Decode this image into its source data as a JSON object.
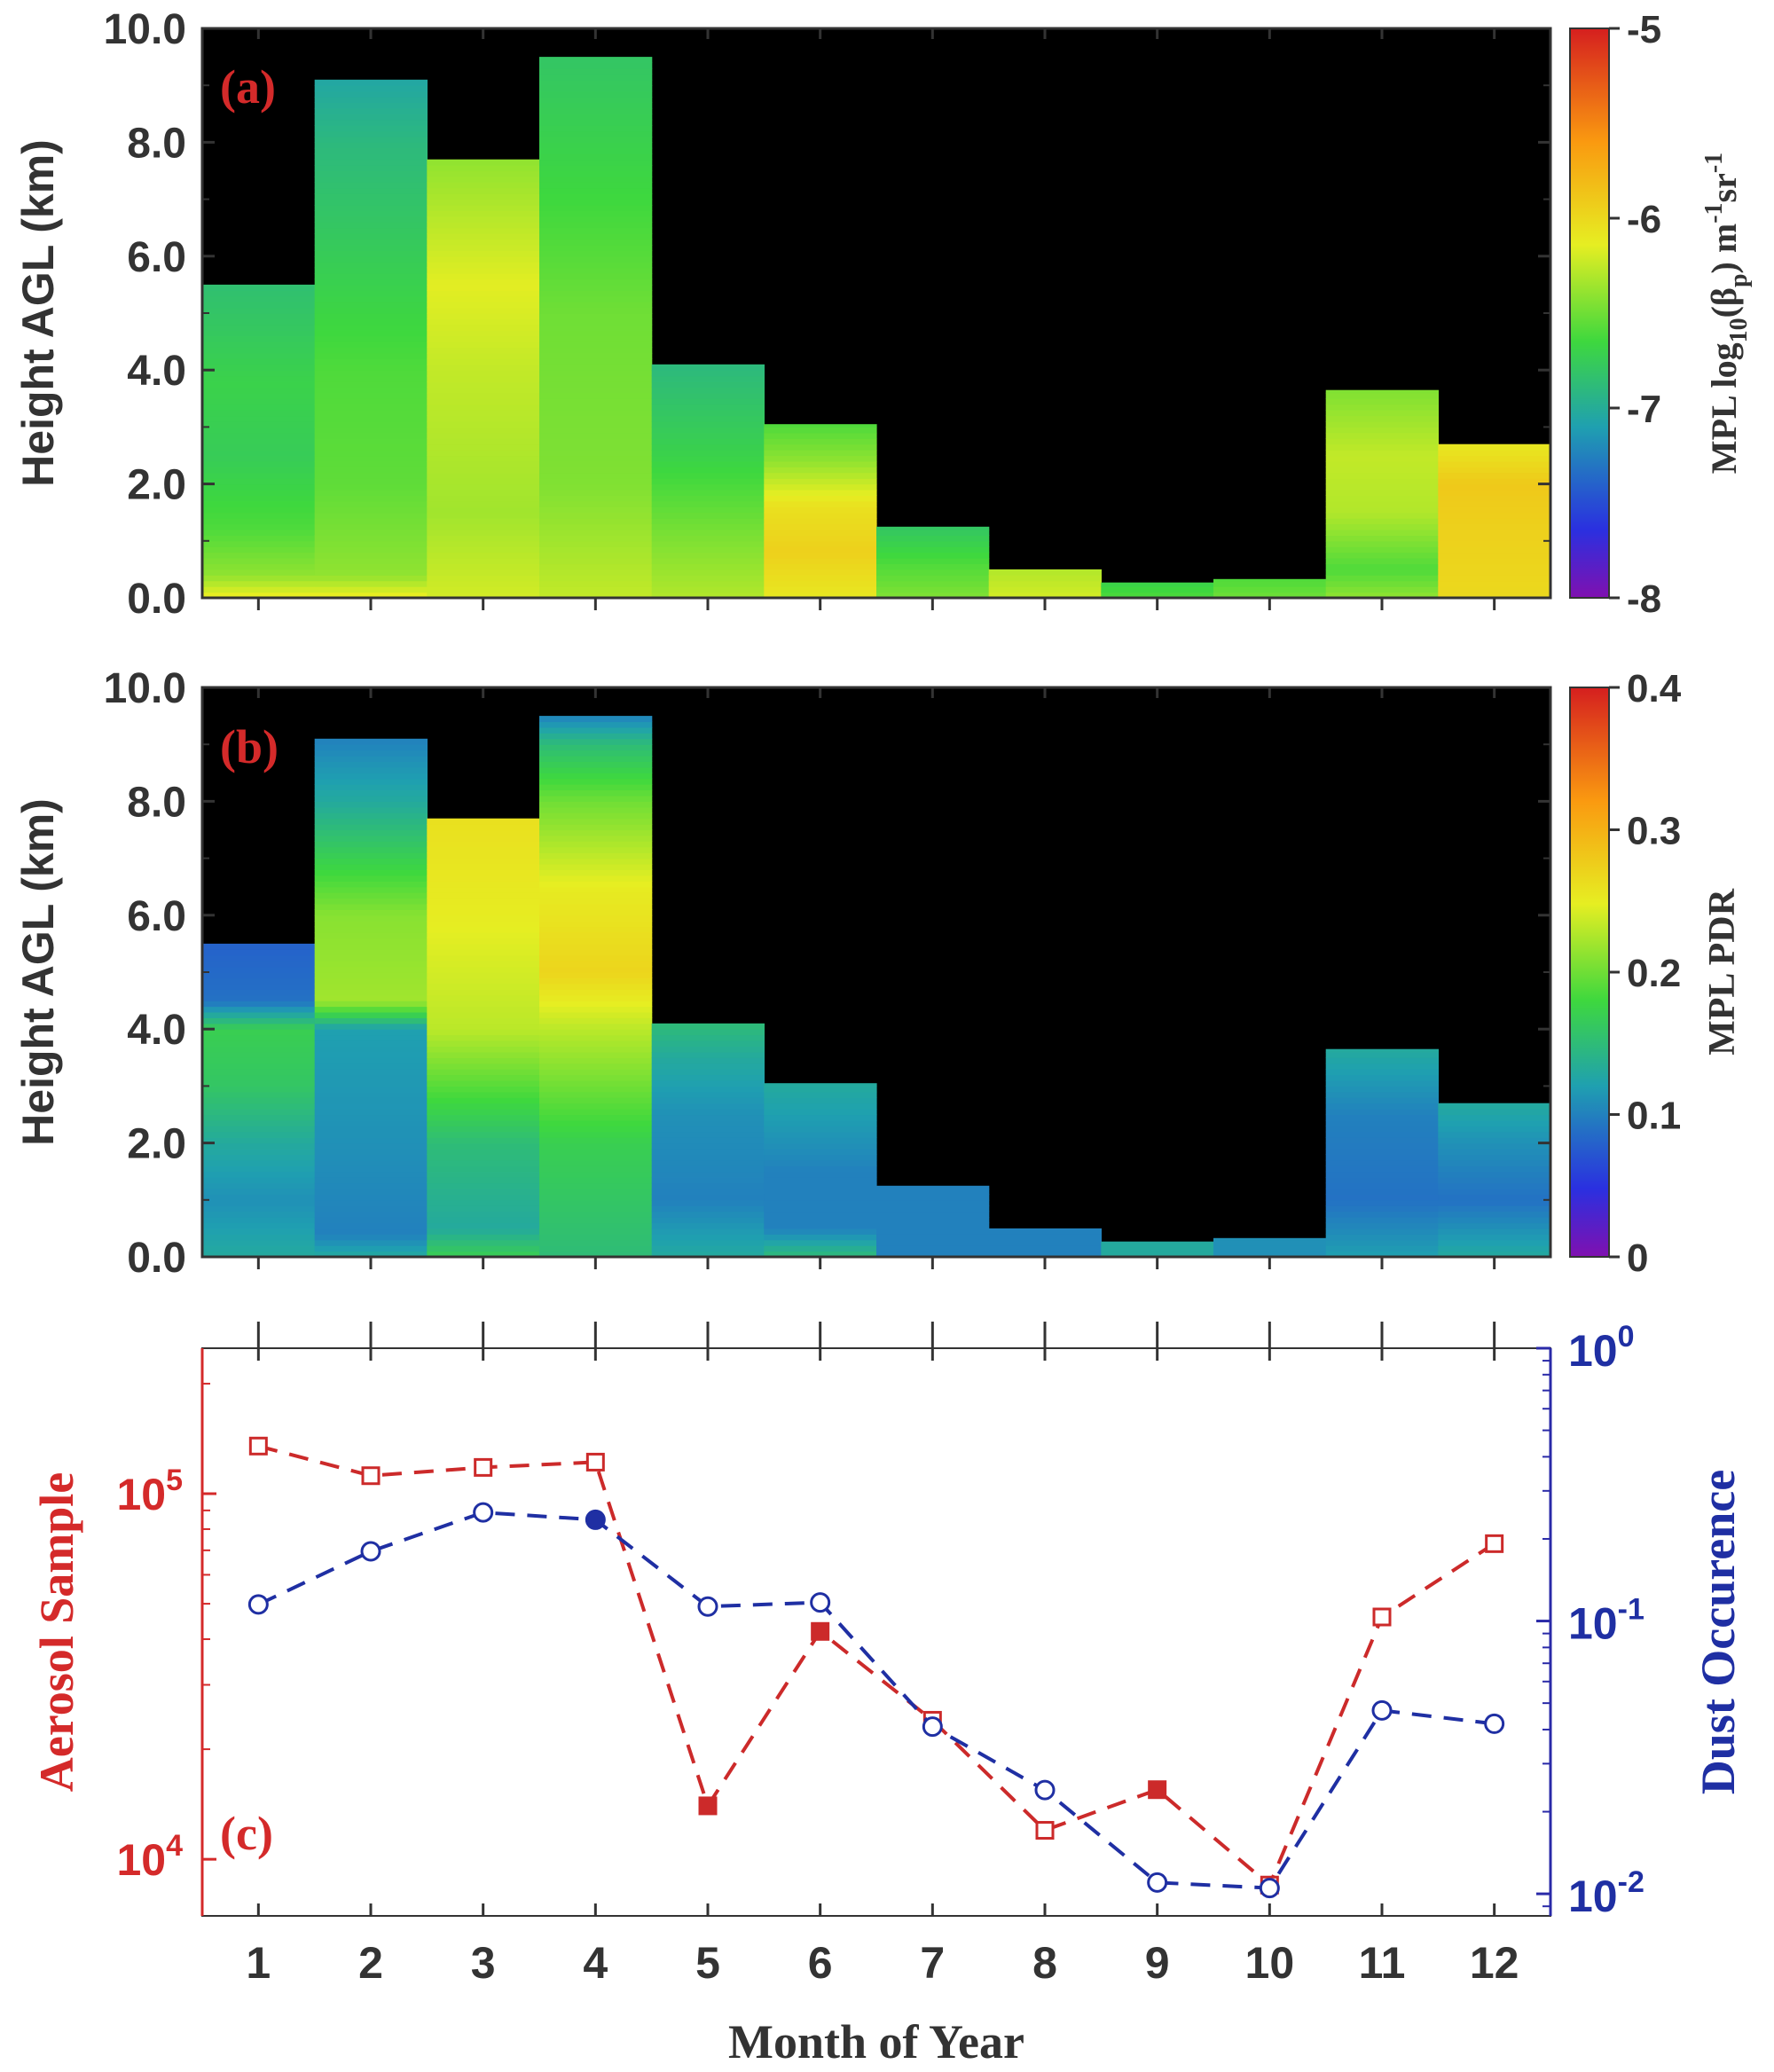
{
  "chart_data": [
    {
      "type": "heatmap",
      "panel_label": "(a)",
      "ylabel": "Height AGL (km)",
      "xlabel": "",
      "ylim": [
        0,
        10
      ],
      "yticks": [
        "0.0",
        "2.0",
        "4.0",
        "6.0",
        "8.0",
        "10.0"
      ],
      "x": [
        1,
        2,
        3,
        4,
        5,
        6,
        7,
        8,
        9,
        10,
        11,
        12
      ],
      "column_tops_km": [
        5.5,
        9.1,
        7.7,
        9.5,
        4.1,
        3.05,
        1.25,
        0.5,
        0.27,
        0.33,
        3.65,
        2.7
      ],
      "value_profiles": [
        [
          [
            0,
            -6.1
          ],
          [
            0.4,
            -6.4
          ],
          [
            1.2,
            -6.6
          ],
          [
            2.5,
            -6.75
          ],
          [
            3.8,
            -6.7
          ],
          [
            5.5,
            -6.85
          ]
        ],
        [
          [
            0,
            -6.1
          ],
          [
            0.4,
            -6.4
          ],
          [
            2,
            -6.55
          ],
          [
            4,
            -6.6
          ],
          [
            6,
            -6.75
          ],
          [
            8,
            -6.9
          ],
          [
            9.1,
            -7.05
          ]
        ],
        [
          [
            0,
            -6.2
          ],
          [
            1.5,
            -6.35
          ],
          [
            4,
            -6.25
          ],
          [
            5.5,
            -6.15
          ],
          [
            7.7,
            -6.4
          ]
        ],
        [
          [
            0,
            -6.25
          ],
          [
            2,
            -6.45
          ],
          [
            5,
            -6.5
          ],
          [
            7,
            -6.65
          ],
          [
            9.5,
            -6.8
          ]
        ],
        [
          [
            0,
            -6.3
          ],
          [
            1,
            -6.45
          ],
          [
            2.5,
            -6.7
          ],
          [
            4.1,
            -6.9
          ]
        ],
        [
          [
            0,
            -6.1
          ],
          [
            0.8,
            -5.95
          ],
          [
            1.6,
            -6.05
          ],
          [
            2.4,
            -6.4
          ],
          [
            3.05,
            -6.6
          ]
        ],
        [
          [
            0,
            -6.45
          ],
          [
            0.6,
            -6.6
          ],
          [
            1.25,
            -6.8
          ]
        ],
        [
          [
            0,
            -6.2
          ],
          [
            0.5,
            -6.3
          ]
        ],
        [
          [
            0,
            -6.6
          ],
          [
            0.27,
            -6.7
          ]
        ],
        [
          [
            0,
            -6.5
          ],
          [
            0.33,
            -6.6
          ]
        ],
        [
          [
            0,
            -6.4
          ],
          [
            0.5,
            -6.6
          ],
          [
            1.5,
            -6.3
          ],
          [
            2.5,
            -6.25
          ],
          [
            3.65,
            -6.45
          ]
        ],
        [
          [
            0,
            -6.0
          ],
          [
            1.2,
            -5.95
          ],
          [
            2,
            -5.9
          ],
          [
            2.7,
            -6.1
          ]
        ]
      ],
      "colorbar": {
        "label": "MPL log₁₀(βₚ) m⁻¹sr⁻¹",
        "label_main": "MPL log",
        "label_sub1": "10",
        "label_paren1": "(β",
        "label_sub2": "p",
        "label_paren2": ") m",
        "label_sup1": "-1",
        "label_sr": "sr",
        "label_sup2": "-1",
        "range": [
          -8,
          -5
        ],
        "ticks": [
          "-5",
          "-6",
          "-7",
          "-8"
        ]
      }
    },
    {
      "type": "heatmap",
      "panel_label": "(b)",
      "ylabel": "Height AGL (km)",
      "xlabel": "",
      "ylim": [
        0,
        10
      ],
      "yticks": [
        "0.0",
        "2.0",
        "4.0",
        "6.0",
        "8.0",
        "10.0"
      ],
      "x": [
        1,
        2,
        3,
        4,
        5,
        6,
        7,
        8,
        9,
        10,
        11,
        12
      ],
      "column_tops_km": [
        5.5,
        9.1,
        7.7,
        9.5,
        4.1,
        3.05,
        1.25,
        0.5,
        0.27,
        0.33,
        3.65,
        2.7
      ],
      "value_profiles": [
        [
          [
            0,
            0.13
          ],
          [
            1,
            0.11
          ],
          [
            2,
            0.13
          ],
          [
            3,
            0.16
          ],
          [
            4,
            0.17
          ],
          [
            4.5,
            0.09
          ],
          [
            5.5,
            0.08
          ]
        ],
        [
          [
            0,
            0.13
          ],
          [
            0.4,
            0.1
          ],
          [
            2,
            0.11
          ],
          [
            4,
            0.12
          ],
          [
            4.5,
            0.22
          ],
          [
            6,
            0.21
          ],
          [
            7,
            0.17
          ],
          [
            8,
            0.13
          ],
          [
            9.1,
            0.1
          ]
        ],
        [
          [
            0,
            0.17
          ],
          [
            0.5,
            0.13
          ],
          [
            2,
            0.15
          ],
          [
            3,
            0.19
          ],
          [
            4,
            0.23
          ],
          [
            6,
            0.25
          ],
          [
            7.7,
            0.26
          ]
        ],
        [
          [
            0,
            0.15
          ],
          [
            2,
            0.17
          ],
          [
            4,
            0.23
          ],
          [
            5,
            0.27
          ],
          [
            6.5,
            0.25
          ],
          [
            8,
            0.2
          ],
          [
            9,
            0.15
          ],
          [
            9.5,
            0.1
          ]
        ],
        [
          [
            0,
            0.13
          ],
          [
            1,
            0.1
          ],
          [
            2.5,
            0.11
          ],
          [
            3.5,
            0.13
          ],
          [
            4.1,
            0.15
          ]
        ],
        [
          [
            0,
            0.15
          ],
          [
            0.5,
            0.1
          ],
          [
            1.5,
            0.1
          ],
          [
            2.5,
            0.12
          ],
          [
            3.05,
            0.13
          ]
        ],
        [
          [
            0,
            0.1
          ],
          [
            1.25,
            0.1
          ]
        ],
        [
          [
            0,
            0.1
          ],
          [
            0.5,
            0.1
          ]
        ],
        [
          [
            0,
            0.13
          ],
          [
            0.27,
            0.13
          ]
        ],
        [
          [
            0,
            0.11
          ],
          [
            0.33,
            0.11
          ]
        ],
        [
          [
            0,
            0.12
          ],
          [
            1,
            0.09
          ],
          [
            2.5,
            0.1
          ],
          [
            3.65,
            0.13
          ]
        ],
        [
          [
            0,
            0.13
          ],
          [
            1,
            0.09
          ],
          [
            2,
            0.11
          ],
          [
            2.7,
            0.13
          ]
        ]
      ],
      "colorbar": {
        "label": "MPL PDR",
        "range": [
          0,
          0.4
        ],
        "ticks": [
          "0.4",
          "0.3",
          "0.2",
          "0.1",
          "0"
        ]
      }
    },
    {
      "type": "line",
      "panel_label": "(c)",
      "xlabel": "Month of Year",
      "x": [
        1,
        2,
        3,
        4,
        5,
        6,
        7,
        8,
        9,
        10,
        11,
        12
      ],
      "xticks": [
        "1",
        "2",
        "3",
        "4",
        "5",
        "6",
        "7",
        "8",
        "9",
        "10",
        "11",
        "12"
      ],
      "left_axis": {
        "label": "Aerosol Sample",
        "scale": "log",
        "ylim": [
          7000,
          250000
        ],
        "ticks": [
          {
            "base": "10",
            "exp": "4",
            "value": 10000
          },
          {
            "base": "10",
            "exp": "5",
            "value": 100000
          }
        ]
      },
      "right_axis": {
        "label": "Dust Occurence",
        "scale": "log",
        "ylim": [
          0.0083,
          1.0
        ],
        "ticks": [
          {
            "base": "10",
            "exp": "-2",
            "value": 0.01
          },
          {
            "base": "10",
            "exp": "-1",
            "value": 0.1
          },
          {
            "base": "10",
            "exp": "0",
            "value": 1
          }
        ]
      },
      "series": [
        {
          "name": "Aerosol Sample",
          "axis": "left",
          "color": "#cc2a2a",
          "marker": "square",
          "values": [
            135000,
            112000,
            118000,
            122000,
            14000,
            42000,
            24000,
            12000,
            15500,
            8500,
            46000,
            73000
          ]
        },
        {
          "name": "Dust Occurence",
          "axis": "right",
          "color": "#1f2fa3",
          "marker": "circle",
          "values": [
            0.115,
            0.18,
            0.25,
            0.235,
            0.113,
            0.117,
            0.041,
            0.024,
            0.011,
            0.0105,
            0.047,
            0.042
          ]
        }
      ]
    }
  ]
}
